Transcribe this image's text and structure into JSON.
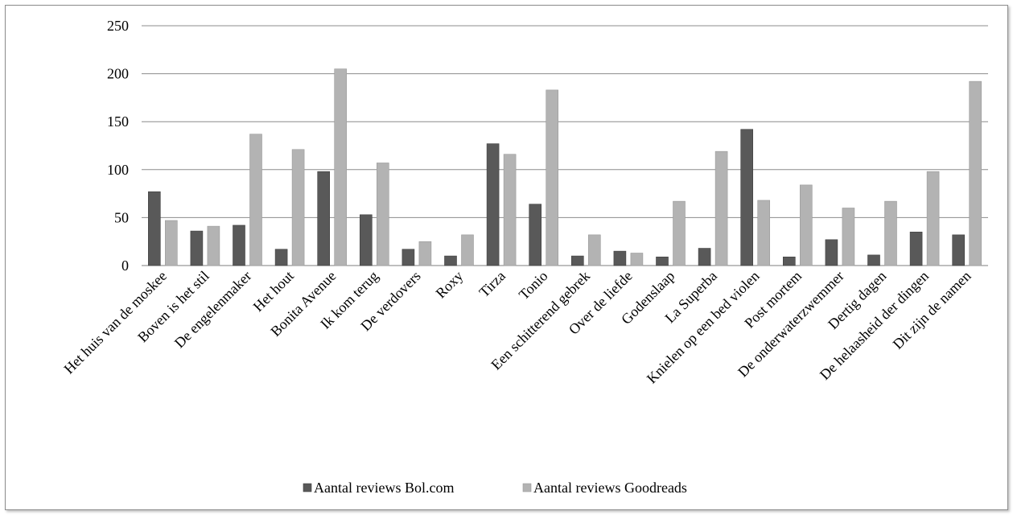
{
  "chart_data": {
    "type": "bar",
    "categories": [
      "Het huis van de moskee",
      "Boven is het stil",
      "De engelenmaker",
      "Het hout",
      "Bonita Avenue",
      "Ik kom terug",
      "De verdovers",
      "Roxy",
      "Tirza",
      "Tonio",
      "Een schitterend gebrek",
      "Over de liefde",
      "Godenslaap",
      "La Superba",
      "Knielen op een bed violen",
      "Post mortem",
      "De onderwaterzwemmer",
      "Dertig dagen",
      "De helaasheid der dingen",
      "Dit zijn de namen"
    ],
    "series": [
      {
        "name": "Aantal reviews Bol.com",
        "color": "#595959",
        "values": [
          77,
          36,
          42,
          17,
          98,
          53,
          17,
          10,
          127,
          64,
          10,
          15,
          9,
          18,
          142,
          9,
          27,
          11,
          35,
          32
        ]
      },
      {
        "name": "Aantal reviews Goodreads",
        "color": "#b3b3b3",
        "values": [
          47,
          41,
          137,
          121,
          205,
          107,
          25,
          32,
          116,
          183,
          32,
          13,
          67,
          119,
          68,
          84,
          60,
          67,
          98,
          192
        ]
      }
    ],
    "yticks": [
      "0",
      "50",
      "100",
      "150",
      "200",
      "250"
    ],
    "ylim": [
      0,
      250
    ],
    "grid": true,
    "legend": "bottom"
  }
}
